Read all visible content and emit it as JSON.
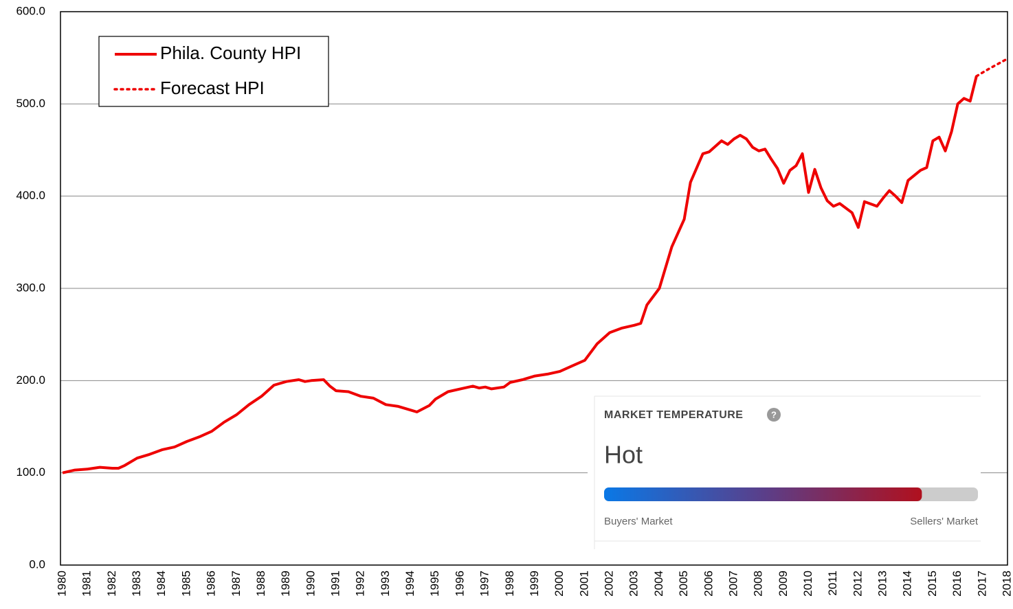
{
  "chart_data": {
    "type": "line",
    "xlim": [
      1980,
      2018
    ],
    "xticks": [
      1980,
      1981,
      1982,
      1983,
      1984,
      1985,
      1986,
      1987,
      1988,
      1989,
      1990,
      1991,
      1992,
      1993,
      1994,
      1995,
      1996,
      1997,
      1998,
      1999,
      2000,
      2001,
      2002,
      2003,
      2004,
      2005,
      2006,
      2007,
      2008,
      2009,
      2010,
      2011,
      2012,
      2013,
      2014,
      2015,
      2016,
      2017,
      2018
    ],
    "ylim": [
      0,
      600
    ],
    "yticks": [
      {
        "value": 0,
        "label": "0.0"
      },
      {
        "value": 100,
        "label": "100.0"
      },
      {
        "value": 200,
        "label": "200.0"
      },
      {
        "value": 300,
        "label": "300.0"
      },
      {
        "value": 400,
        "label": "400.0"
      },
      {
        "value": 500,
        "label": "500.0"
      },
      {
        "value": 600,
        "label": "600.0"
      }
    ],
    "grid": true,
    "legend": "top-left",
    "series": [
      {
        "name": "Phila. County HPI",
        "color": "#ee0000",
        "style": "solid",
        "x": [
          1980,
          1980.5,
          1981,
          1981.5,
          1982,
          1982.25,
          1982.5,
          1983,
          1983.5,
          1984,
          1984.5,
          1985,
          1985.5,
          1986,
          1986.5,
          1987,
          1987.5,
          1988,
          1988.5,
          1989,
          1989.5,
          1989.75,
          1990,
          1990.5,
          1990.75,
          1991,
          1991.5,
          1992,
          1992.5,
          1993,
          1993.5,
          1994,
          1994.25,
          1994.75,
          1995,
          1995.5,
          1996,
          1996.5,
          1996.75,
          1997,
          1997.25,
          1997.75,
          1998,
          1998.5,
          1999,
          1999.5,
          2000,
          2000.5,
          2001,
          2001.5,
          2002,
          2002.5,
          2003,
          2003.25,
          2003.5,
          2004,
          2004.5,
          2005,
          2005.25,
          2005.75,
          2006,
          2006.5,
          2006.75,
          2007,
          2007.25,
          2007.5,
          2007.75,
          2008,
          2008.25,
          2008.5,
          2008.75,
          2009,
          2009.25,
          2009.5,
          2009.75,
          2010,
          2010.25,
          2010.5,
          2010.75,
          2011,
          2011.25,
          2011.75,
          2012,
          2012.25,
          2012.75,
          2013,
          2013.25,
          2013.5,
          2013.75,
          2014,
          2014.5,
          2014.75,
          2015,
          2015.25,
          2015.5,
          2015.75,
          2016,
          2016.25,
          2016.5,
          2016.75
        ],
        "values": [
          100,
          103,
          104,
          106,
          105,
          105,
          108,
          116,
          120,
          125,
          128,
          134,
          139,
          145,
          155,
          163,
          174,
          183,
          195,
          199,
          201,
          199,
          200,
          201,
          194,
          189,
          188,
          183,
          181,
          174,
          172,
          168,
          166,
          173,
          180,
          188,
          191,
          194,
          192,
          193,
          191,
          193,
          198,
          201,
          205,
          207,
          210,
          216,
          222,
          240,
          252,
          257,
          260,
          262,
          282,
          300,
          345,
          375,
          415,
          446,
          448,
          460,
          456,
          462,
          466,
          462,
          453,
          449,
          451,
          440,
          430,
          414,
          428,
          433,
          446,
          404,
          429,
          409,
          395,
          389,
          392,
          382,
          366,
          394,
          389,
          398,
          406,
          400,
          393,
          417,
          428,
          431,
          460,
          464,
          449,
          470,
          500,
          506,
          503,
          530
        ]
      },
      {
        "name": "Forecast HPI",
        "color": "#ee0000",
        "style": "dotted",
        "x": [
          2016.75,
          2017.25,
          2018
        ],
        "values": [
          530,
          538,
          549
        ]
      }
    ]
  },
  "market_temperature": {
    "title": "MARKET TEMPERATURE",
    "help": "?",
    "status": "Hot",
    "level": 85,
    "max": 100,
    "left_label": "Buyers' Market",
    "right_label": "Sellers' Market"
  }
}
